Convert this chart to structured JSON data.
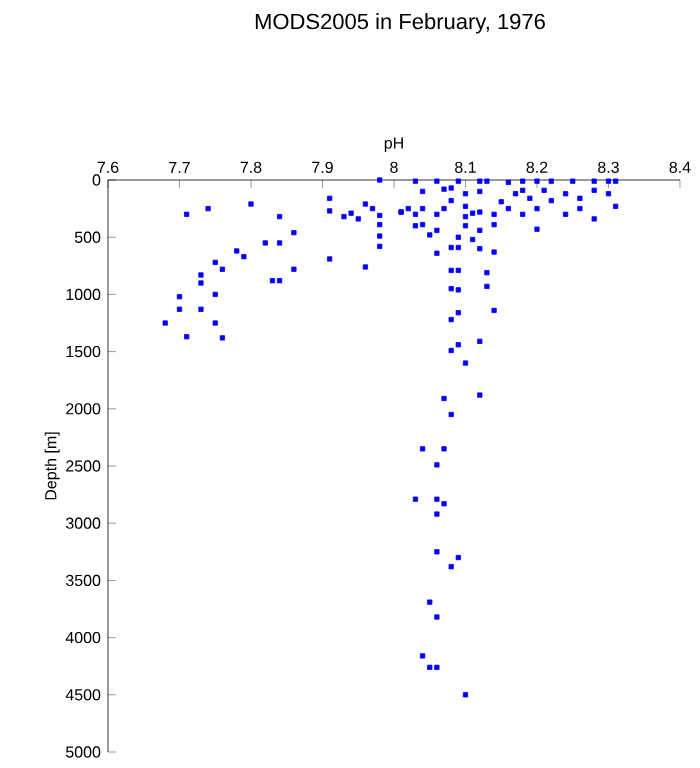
{
  "chart_data": {
    "type": "scatter",
    "title": "MODS2005 in February, 1976",
    "xlabel": "pH",
    "ylabel": "Depth [m]",
    "marker": "square",
    "grid": false,
    "x": [
      7.71,
      7.74,
      7.8,
      7.84,
      7.86,
      7.82,
      7.84,
      7.78,
      7.79,
      7.75,
      7.76,
      7.73,
      7.73,
      7.83,
      7.84,
      7.86,
      7.7,
      7.75,
      7.7,
      7.73,
      7.68,
      7.75,
      7.71,
      7.76,
      7.91,
      7.91,
      7.91,
      7.93,
      7.94,
      7.95,
      7.96,
      7.97,
      7.98,
      7.98,
      7.98,
      7.98,
      7.98,
      7.96,
      8.01,
      8.03,
      8.06,
      8.09,
      8.12,
      8.13,
      8.18,
      8.2,
      8.22,
      8.25,
      8.28,
      8.3,
      8.31,
      8.04,
      8.07,
      8.08,
      8.1,
      8.12,
      8.16,
      8.17,
      8.18,
      8.19,
      8.21,
      8.22,
      8.24,
      8.26,
      8.28,
      8.3,
      8.31,
      8.26,
      8.24,
      8.28,
      8.2,
      8.18,
      8.2,
      8.16,
      8.15,
      8.14,
      8.14,
      8.12,
      8.12,
      8.11,
      8.1,
      8.1,
      8.1,
      8.07,
      8.06,
      8.06,
      8.04,
      8.04,
      8.03,
      8.03,
      8.02,
      8.01,
      8.05,
      8.06,
      8.08,
      8.09,
      8.09,
      8.08,
      8.11,
      8.12,
      8.14,
      8.08,
      8.09,
      8.13,
      8.08,
      8.09,
      8.13,
      8.09,
      8.14,
      8.08,
      8.09,
      8.12,
      8.08,
      8.1,
      8.12,
      8.07,
      8.08,
      8.04,
      8.07,
      8.06,
      8.03,
      8.06,
      8.07,
      8.06,
      8.06,
      8.09,
      8.08,
      8.05,
      8.06,
      8.04,
      8.05,
      8.06,
      8.1
    ],
    "values": [
      300,
      250,
      210,
      320,
      460,
      550,
      550,
      620,
      670,
      720,
      780,
      830,
      900,
      880,
      880,
      780,
      1020,
      1000,
      1130,
      1130,
      1250,
      1250,
      1370,
      1380,
      160,
      270,
      690,
      320,
      290,
      340,
      210,
      250,
      0,
      310,
      390,
      490,
      580,
      760,
      280,
      10,
      10,
      10,
      10,
      10,
      10,
      10,
      10,
      10,
      10,
      10,
      10,
      100,
      80,
      70,
      120,
      100,
      20,
      120,
      90,
      160,
      90,
      180,
      120,
      160,
      90,
      120,
      230,
      250,
      300,
      340,
      250,
      300,
      430,
      250,
      190,
      300,
      390,
      440,
      280,
      290,
      230,
      400,
      320,
      250,
      300,
      440,
      250,
      390,
      300,
      400,
      250,
      280,
      480,
      640,
      590,
      500,
      590,
      180,
      520,
      600,
      630,
      790,
      790,
      810,
      950,
      960,
      930,
      1160,
      1140,
      1220,
      1440,
      1410,
      1490,
      1600,
      1880,
      1910,
      2050,
      2350,
      2350,
      2490,
      2790,
      2790,
      2830,
      2920,
      3250,
      3300,
      3380,
      3690,
      3820,
      4160,
      4260,
      4260,
      4500
    ],
    "color": "#0000ff",
    "xlim": [
      7.6,
      8.4
    ],
    "xticks": [
      7.6,
      7.7,
      7.8,
      7.9,
      8,
      8.1,
      8.2,
      8.3,
      8.4
    ],
    "ylim": [
      5000,
      0
    ],
    "yticks": [
      0,
      500,
      1000,
      1500,
      2000,
      2500,
      3000,
      3500,
      4000,
      4500,
      5000
    ]
  }
}
